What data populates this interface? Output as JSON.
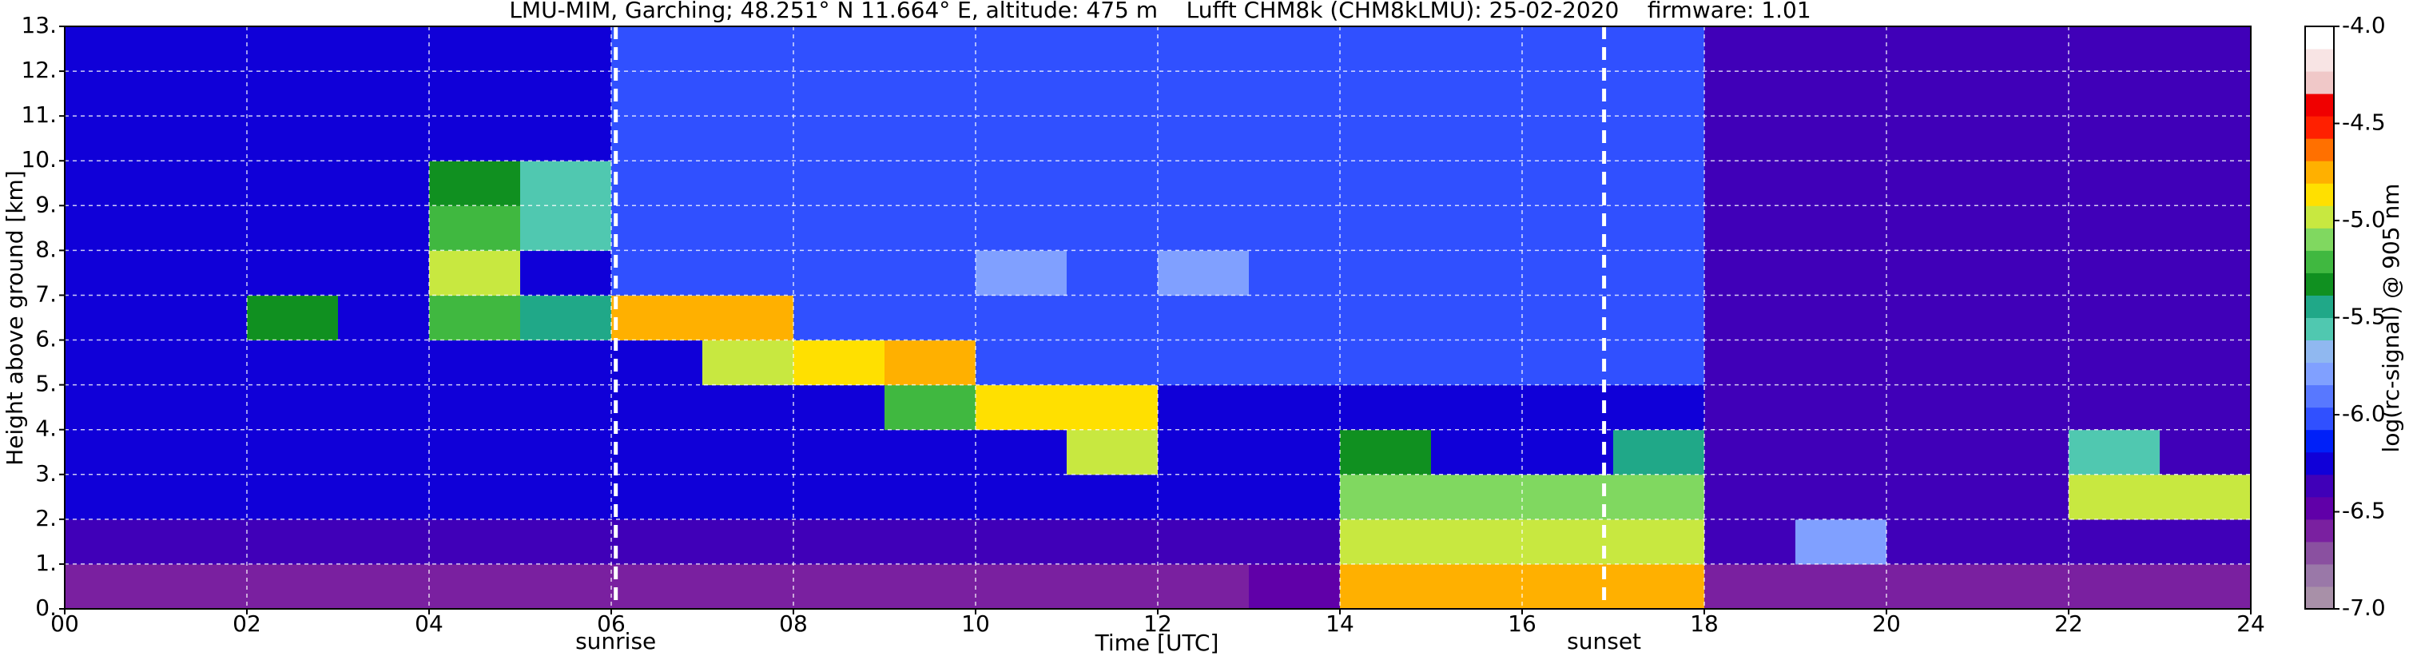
{
  "chart_data": {
    "type": "heatmap",
    "title": "LMU-MIM, Garching; 48.251° N 11.664° E, altitude: 475 m    Lufft CHM8k (CHM8kLMU): 25-02-2020    firmware: 1.01",
    "x_label": "Time [UTC]",
    "y_label": "Height above ground [km]",
    "colorbar_label": "log(rc-signal) @ 905 nm",
    "xlim": [
      0,
      24
    ],
    "ylim": [
      0,
      13
    ],
    "grid": true,
    "xticks": [
      {
        "value": 0,
        "label": "00"
      },
      {
        "value": 2,
        "label": "02"
      },
      {
        "value": 4,
        "label": "04"
      },
      {
        "value": 6,
        "label": "06"
      },
      {
        "value": 8,
        "label": "08"
      },
      {
        "value": 10,
        "label": "10"
      },
      {
        "value": 12,
        "label": "12"
      },
      {
        "value": 14,
        "label": "14"
      },
      {
        "value": 16,
        "label": "16"
      },
      {
        "value": 18,
        "label": "18"
      },
      {
        "value": 20,
        "label": "20"
      },
      {
        "value": 22,
        "label": "22"
      },
      {
        "value": 24,
        "label": "24"
      }
    ],
    "yticks": [
      {
        "value": 0,
        "label": "0."
      },
      {
        "value": 1,
        "label": "1."
      },
      {
        "value": 2,
        "label": "2."
      },
      {
        "value": 3,
        "label": "3."
      },
      {
        "value": 4,
        "label": "4."
      },
      {
        "value": 5,
        "label": "5."
      },
      {
        "value": 6,
        "label": "6."
      },
      {
        "value": 7,
        "label": "7."
      },
      {
        "value": 8,
        "label": "8."
      },
      {
        "value": 9,
        "label": "9."
      },
      {
        "value": 10,
        "label": "10."
      },
      {
        "value": 11,
        "label": "11."
      },
      {
        "value": 12,
        "label": "12."
      },
      {
        "value": 13,
        "label": "13."
      }
    ],
    "clim": [
      -7,
      -4
    ],
    "cticks": [
      {
        "value": -4,
        "label": "-4.0"
      },
      {
        "value": -4.5,
        "label": "-4.5"
      },
      {
        "value": -5,
        "label": "-5.0"
      },
      {
        "value": -5.5,
        "label": "-5.5"
      },
      {
        "value": -6,
        "label": "-6.0"
      },
      {
        "value": -6.5,
        "label": "-6.5"
      },
      {
        "value": -7,
        "label": "-7.0"
      }
    ],
    "colormap": [
      "#a890a8",
      "#9a78a8",
      "#8a50a0",
      "#7a20a0",
      "#6000a8",
      "#4000b8",
      "#1000d8",
      "#0020f8",
      "#3050ff",
      "#5878ff",
      "#80a0ff",
      "#90b8f0",
      "#50c8b0",
      "#20a888",
      "#109020",
      "#40b840",
      "#80d860",
      "#c8e840",
      "#ffe000",
      "#ffb000",
      "#ff7000",
      "#ff2000",
      "#f00000",
      "#f0c8c8",
      "#f8e4e4",
      "#ffffff"
    ],
    "x_bins": [
      0,
      1,
      2,
      3,
      4,
      5,
      6,
      7,
      8,
      9,
      10,
      11,
      12,
      13,
      14,
      15,
      16,
      17,
      18,
      19,
      20,
      21,
      22,
      23,
      24
    ],
    "y_bins": [
      0,
      1,
      2,
      3,
      4,
      5,
      6,
      7,
      8,
      9,
      10,
      11,
      12,
      13
    ],
    "z": [
      [
        -6.6,
        -6.6,
        -6.6,
        -6.6,
        -6.6,
        -6.6,
        -6.6,
        -6.6,
        -6.6,
        -6.6,
        -6.6,
        -6.6,
        -6.6,
        -6.5,
        -4.8,
        -4.8,
        -4.8,
        -4.8,
        -6.6,
        -6.6,
        -6.6,
        -6.6,
        -6.6,
        -6.6
      ],
      [
        -6.4,
        -6.4,
        -6.4,
        -6.4,
        -6.4,
        -6.4,
        -6.4,
        -6.4,
        -6.4,
        -6.4,
        -6.4,
        -6.4,
        -6.4,
        -6.4,
        -5.0,
        -5.0,
        -5.0,
        -5.0,
        -6.4,
        -5.8,
        -6.4,
        -6.4,
        -6.4,
        -6.4
      ],
      [
        -6.3,
        -6.3,
        -6.3,
        -6.3,
        -6.3,
        -6.3,
        -6.3,
        -6.3,
        -6.3,
        -6.3,
        -6.3,
        -6.3,
        -6.3,
        -6.3,
        -5.1,
        -5.1,
        -5.1,
        -5.1,
        -6.4,
        -6.4,
        -6.4,
        -6.4,
        -5.0,
        -5.0
      ],
      [
        -6.3,
        -6.3,
        -6.3,
        -6.3,
        -6.3,
        -6.3,
        -6.3,
        -6.3,
        -6.3,
        -6.3,
        -6.3,
        -5.0,
        -6.3,
        -6.3,
        -5.3,
        -6.3,
        -6.3,
        -5.5,
        -6.4,
        -6.4,
        -6.4,
        -6.4,
        -5.6,
        -6.4
      ],
      [
        -6.3,
        -6.3,
        -6.3,
        -6.3,
        -6.3,
        -6.3,
        -6.3,
        -6.3,
        -6.3,
        -5.2,
        -4.9,
        -4.9,
        -6.3,
        -6.3,
        -6.3,
        -6.3,
        -6.3,
        -6.3,
        -6.4,
        -6.4,
        -6.4,
        -6.4,
        -6.4,
        -6.4
      ],
      [
        -6.2,
        -6.2,
        -6.2,
        -6.2,
        -6.2,
        -6.2,
        -6.2,
        -5.0,
        -4.9,
        -4.8,
        -6.0,
        -6.0,
        -6.0,
        -6.0,
        -6.0,
        -6.0,
        -6.0,
        -6.0,
        -6.4,
        -6.4,
        -6.4,
        -6.4,
        -6.4,
        -6.4
      ],
      [
        -6.2,
        -6.2,
        -5.3,
        -6.2,
        -5.2,
        -5.4,
        -4.8,
        -4.8,
        -6.0,
        -6.0,
        -6.0,
        -6.0,
        -6.0,
        -6.0,
        -6.0,
        -6.0,
        -6.0,
        -6.0,
        -6.4,
        -6.4,
        -6.4,
        -6.4,
        -6.4,
        -6.4
      ],
      [
        -6.2,
        -6.2,
        -6.2,
        -6.2,
        -5.0,
        -6.2,
        -6.0,
        -6.0,
        -6.0,
        -6.0,
        -5.8,
        -6.0,
        -5.8,
        -6.0,
        -6.0,
        -6.0,
        -6.0,
        -6.0,
        -6.4,
        -6.4,
        -6.4,
        -6.4,
        -6.4,
        -6.4
      ],
      [
        -6.2,
        -6.2,
        -6.2,
        -6.2,
        -5.2,
        -5.6,
        -6.0,
        -6.0,
        -6.0,
        -6.0,
        -6.0,
        -6.0,
        -6.0,
        -6.0,
        -6.0,
        -6.0,
        -6.0,
        -6.0,
        -6.4,
        -6.4,
        -6.4,
        -6.4,
        -6.4,
        -6.4
      ],
      [
        -6.2,
        -6.2,
        -6.2,
        -6.2,
        -5.3,
        -5.6,
        -6.0,
        -6.0,
        -6.0,
        -6.0,
        -6.0,
        -6.0,
        -6.0,
        -6.0,
        -6.0,
        -6.0,
        -6.0,
        -6.0,
        -6.4,
        -6.4,
        -6.4,
        -6.4,
        -6.4,
        -6.4
      ],
      [
        -6.2,
        -6.2,
        -6.2,
        -6.2,
        -6.2,
        -6.2,
        -6.0,
        -6.0,
        -6.0,
        -6.0,
        -6.0,
        -6.0,
        -6.0,
        -6.0,
        -6.0,
        -6.0,
        -6.0,
        -6.0,
        -6.4,
        -6.4,
        -6.4,
        -6.4,
        -6.4,
        -6.4
      ],
      [
        -6.2,
        -6.2,
        -6.2,
        -6.2,
        -6.2,
        -6.2,
        -6.0,
        -6.0,
        -6.0,
        -6.0,
        -6.0,
        -6.0,
        -6.0,
        -6.0,
        -6.0,
        -6.0,
        -6.0,
        -6.0,
        -6.4,
        -6.4,
        -6.4,
        -6.4,
        -6.4,
        -6.4
      ],
      [
        -6.2,
        -6.2,
        -6.2,
        -6.2,
        -6.2,
        -6.2,
        -6.0,
        -6.0,
        -6.0,
        -6.0,
        -6.0,
        -6.0,
        -6.0,
        -6.0,
        -6.0,
        -6.0,
        -6.0,
        -6.0,
        -6.4,
        -6.4,
        -6.4,
        -6.4,
        -6.4,
        -6.4
      ]
    ],
    "annotations": [
      {
        "x": 6.05,
        "label": "sunrise"
      },
      {
        "x": 16.9,
        "label": "sunset"
      }
    ]
  }
}
